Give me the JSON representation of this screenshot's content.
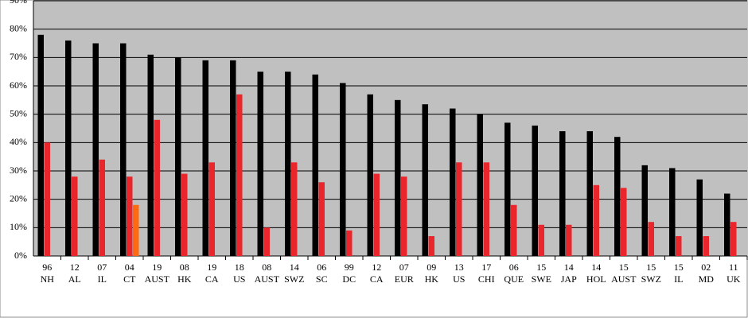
{
  "chart_data": {
    "type": "bar",
    "categories": [
      [
        "96",
        "NH"
      ],
      [
        "12",
        "AL"
      ],
      [
        "07",
        "IL"
      ],
      [
        "04",
        "CT"
      ],
      [
        "19",
        "AUST"
      ],
      [
        "08",
        "HK"
      ],
      [
        "19",
        "CA"
      ],
      [
        "18",
        "US"
      ],
      [
        "08",
        "AUST"
      ],
      [
        "14",
        "SWZ"
      ],
      [
        "06",
        "SC"
      ],
      [
        "99",
        "DC"
      ],
      [
        "12",
        "CA"
      ],
      [
        "07",
        "EUR"
      ],
      [
        "09",
        "HK"
      ],
      [
        "13",
        "US"
      ],
      [
        "17",
        "CHI"
      ],
      [
        "06",
        "QUE"
      ],
      [
        "15",
        "SWE"
      ],
      [
        "14",
        "JAP"
      ],
      [
        "14",
        "HOL"
      ],
      [
        "15",
        "AUST"
      ],
      [
        "15",
        "SWZ"
      ],
      [
        "15",
        "IL"
      ],
      [
        "02",
        "MD"
      ],
      [
        "11",
        "UK"
      ]
    ],
    "series": [
      {
        "color": "#000000",
        "values": [
          78,
          76,
          75,
          75,
          71,
          70,
          69,
          69,
          65,
          65,
          64,
          61,
          57,
          55,
          53.5,
          52,
          50,
          47,
          46,
          44,
          44,
          42,
          32,
          31,
          27,
          22
        ]
      },
      {
        "color": "#e8262b",
        "values": [
          40,
          28,
          34,
          28,
          48,
          29,
          33,
          57,
          10,
          33,
          26,
          9,
          29,
          28,
          7,
          33,
          33,
          18,
          11,
          11,
          25,
          24,
          12,
          7,
          7,
          12
        ]
      },
      {
        "color": "#ff6a10",
        "values": [
          null,
          null,
          null,
          18,
          null,
          null,
          null,
          null,
          null,
          null,
          null,
          null,
          null,
          null,
          null,
          null,
          null,
          null,
          null,
          null,
          null,
          null,
          null,
          null,
          null,
          null
        ]
      }
    ],
    "ylim": [
      0,
      90
    ],
    "yticks": [
      {
        "value": 0,
        "label": "0%"
      },
      {
        "value": 10,
        "label": "10%"
      },
      {
        "value": 20,
        "label": "20%"
      },
      {
        "value": 30,
        "label": "30%"
      },
      {
        "value": 40,
        "label": "40%"
      },
      {
        "value": 50,
        "label": "50%"
      },
      {
        "value": 60,
        "label": "60%"
      },
      {
        "value": 70,
        "label": "70%"
      },
      {
        "value": 80,
        "label": "80%"
      },
      {
        "value": 90,
        "label": "90%"
      }
    ],
    "grid": true
  }
}
